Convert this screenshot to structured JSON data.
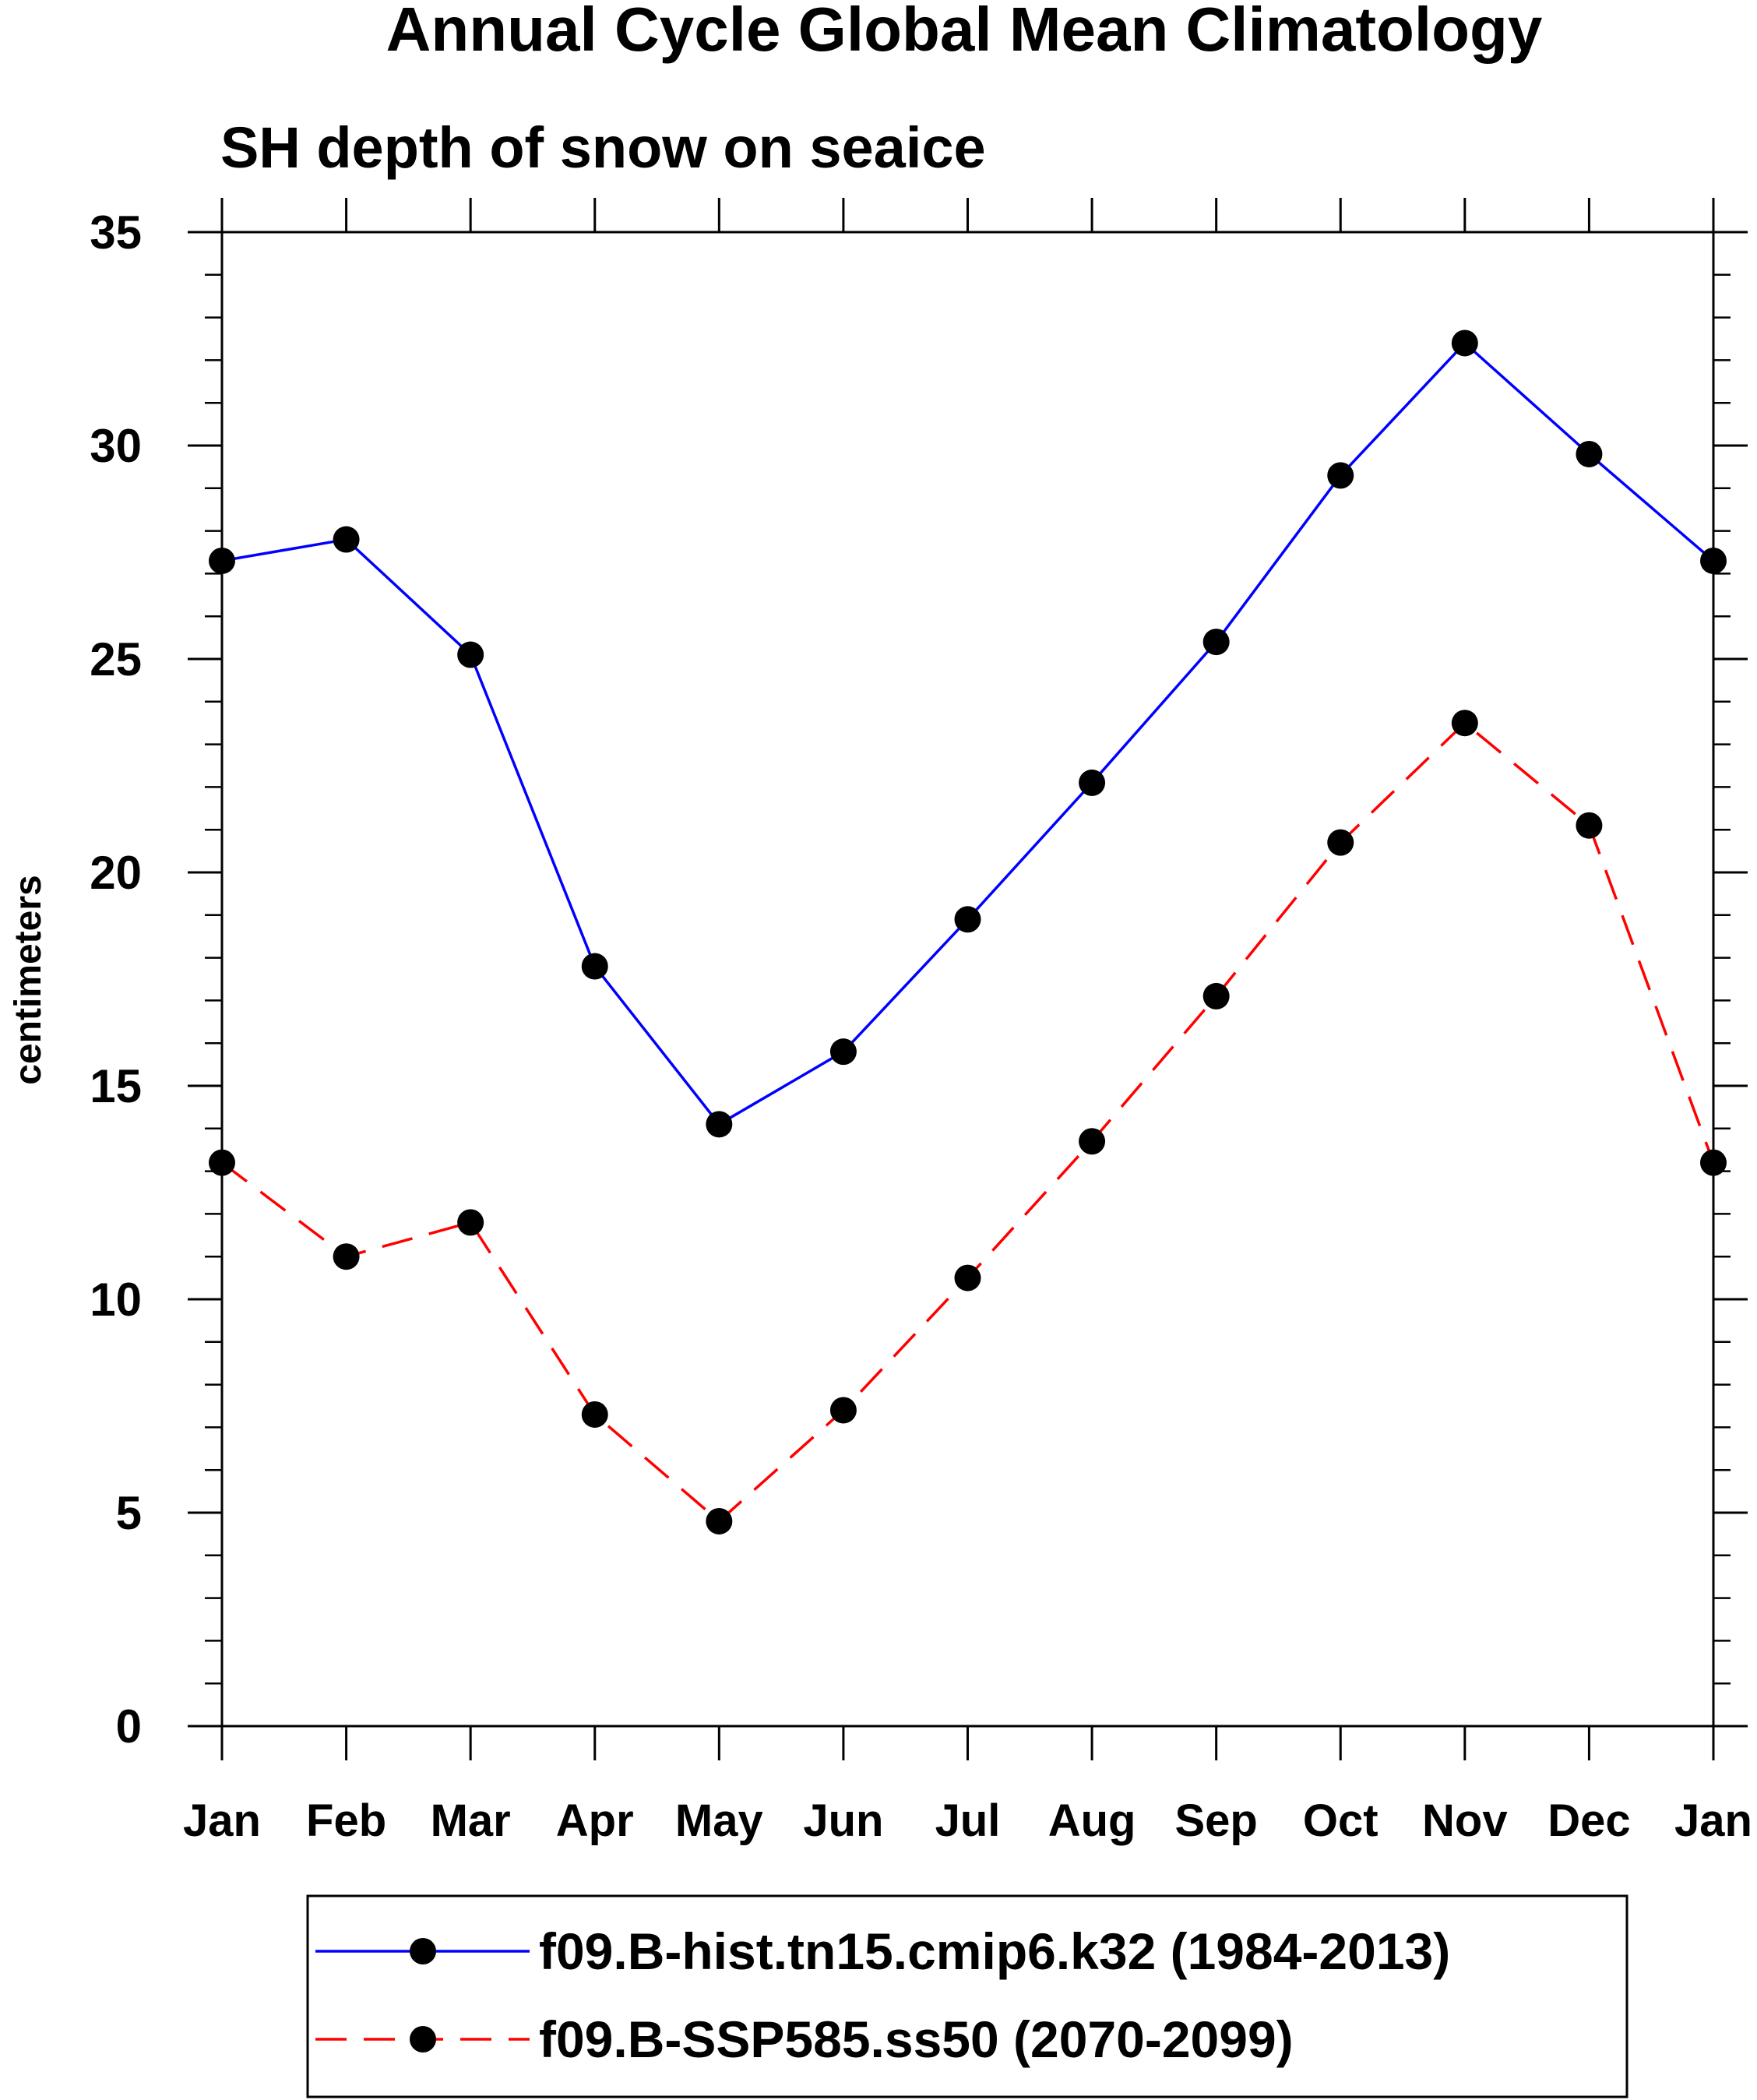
{
  "chart_data": {
    "type": "line",
    "title": "Annual Cycle Global Mean Climatology",
    "subtitle": "SH depth of snow on seaice",
    "ylabel": "centimeters",
    "xlabel": "",
    "categories": [
      "Jan",
      "Feb",
      "Mar",
      "Apr",
      "May",
      "Jun",
      "Jul",
      "Aug",
      "Sep",
      "Oct",
      "Nov",
      "Dec",
      "Jan"
    ],
    "ylim": [
      0,
      35
    ],
    "yticks": [
      0,
      5,
      10,
      15,
      20,
      25,
      30,
      35
    ],
    "ytick_labels": [
      "0",
      "5",
      "10",
      "15",
      "20",
      "25",
      "30",
      "35"
    ],
    "grid": false,
    "legend_position": "bottom",
    "series": [
      {
        "name": "f09.B-hist.tn15.cmip6.k32 (1984-2013)",
        "color": "#0000ff",
        "dash": "solid",
        "marker": "filled-circle",
        "values": [
          27.3,
          27.8,
          25.1,
          17.8,
          14.1,
          15.8,
          18.9,
          22.1,
          25.4,
          29.3,
          32.4,
          29.8,
          27.3
        ]
      },
      {
        "name": "f09.B-SSP585.ss50 (2070-2099)",
        "color": "#ff0000",
        "dash": "dashed",
        "marker": "filled-circle",
        "values": [
          13.2,
          11.0,
          11.8,
          7.3,
          4.8,
          7.4,
          10.5,
          13.7,
          17.1,
          20.7,
          23.5,
          21.1,
          13.2
        ]
      }
    ]
  }
}
